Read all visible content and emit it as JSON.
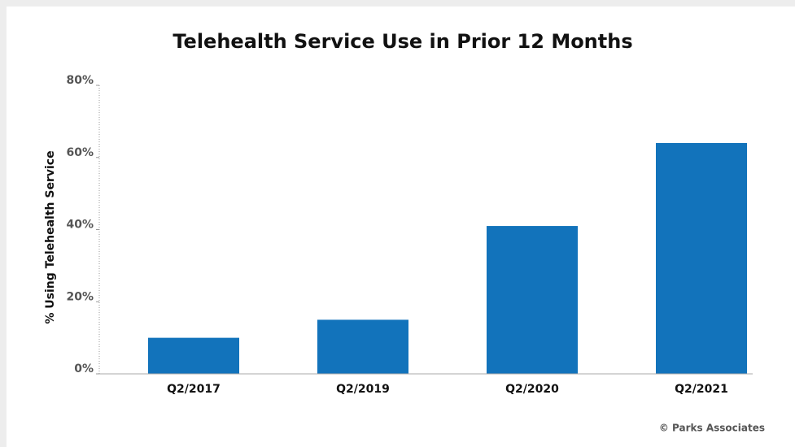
{
  "chart_data": {
    "type": "bar",
    "title": "Telehealth Service Use in Prior 12 Months",
    "y_axis_label": "% Using Telehealth Service",
    "categories": [
      "Q2/2017",
      "Q2/2019",
      "Q2/2020",
      "Q2/2021"
    ],
    "values": [
      10,
      15,
      41,
      64
    ],
    "color": "#1273bb",
    "ylim": [
      0,
      80
    ],
    "yticks": [
      {
        "value": 0,
        "label": "0%"
      },
      {
        "value": 20,
        "label": "20%"
      },
      {
        "value": 40,
        "label": "40%"
      },
      {
        "value": 60,
        "label": "60%"
      },
      {
        "value": 80,
        "label": "80%"
      }
    ],
    "source": "© Parks Associates"
  }
}
